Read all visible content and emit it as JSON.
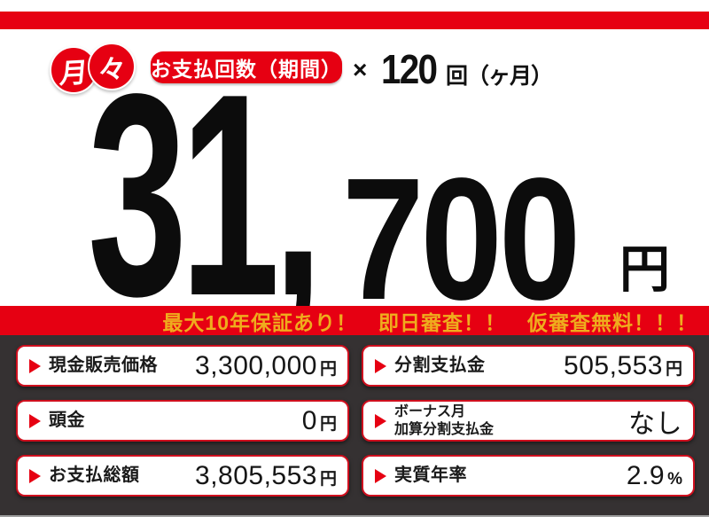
{
  "colors": {
    "accent_red": "#e60012",
    "cell_border_red": "#cf0f1e",
    "panel_dark": "#353132",
    "banner_gold": "#efac1d",
    "text_black": "#0c0c0c"
  },
  "monthly_badge": {
    "char1": "月",
    "char2": "々"
  },
  "payment_terms": {
    "pill_label": "お支払回数（期間）",
    "multiplier": "×",
    "count": "120",
    "count_unit": "回（ヶ月）"
  },
  "price": {
    "amount_main": "31,",
    "amount_sub": "700",
    "unit": "円",
    "full_value": "31,700円"
  },
  "banner": {
    "text": "最大10年保証あり！　即日審査！！　仮審査無料！！！"
  },
  "details": {
    "cells": [
      {
        "label": "現金販売価格",
        "label2": "",
        "value": "3,300,000",
        "unit": "円"
      },
      {
        "label": "分割支払金",
        "label2": "",
        "value": "505,553",
        "unit": "円"
      },
      {
        "label": "頭金",
        "label2": "",
        "value": "0",
        "unit": "円"
      },
      {
        "label": "ボーナス月",
        "label2": "加算分割支払金",
        "value": "なし",
        "unit": ""
      },
      {
        "label": "お支払総額",
        "label2": "",
        "value": "3,805,553",
        "unit": "円"
      },
      {
        "label": "実質年率",
        "label2": "",
        "value": "2.9",
        "unit": "%"
      }
    ]
  }
}
